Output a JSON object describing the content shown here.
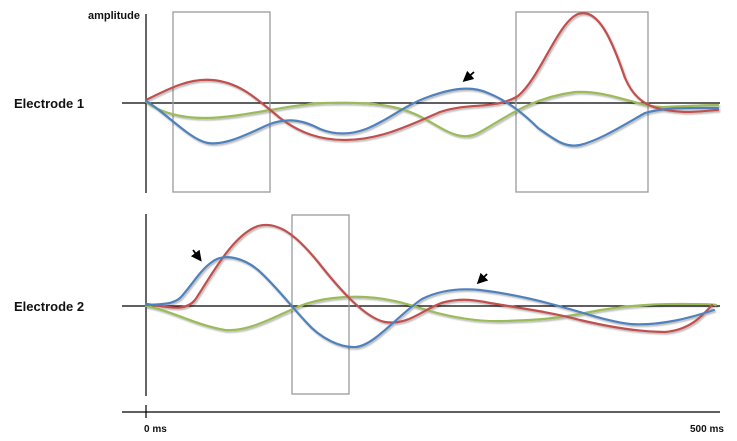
{
  "labels": {
    "y_axis": "amplitude",
    "electrode_1": "Electrode 1",
    "electrode_2": "Electrode 2",
    "time_start": "0 ms",
    "time_end": "500 ms"
  },
  "colors": {
    "red": "#c0504d",
    "blue": "#4f81bd",
    "green": "#9bbb59",
    "box": "#9a9a9a",
    "axis": "#000000"
  },
  "panels": [
    {
      "name": "electrode-1",
      "boxes": 2,
      "arrows": 1
    },
    {
      "name": "electrode-2",
      "boxes": 1,
      "arrows": 2
    }
  ]
}
